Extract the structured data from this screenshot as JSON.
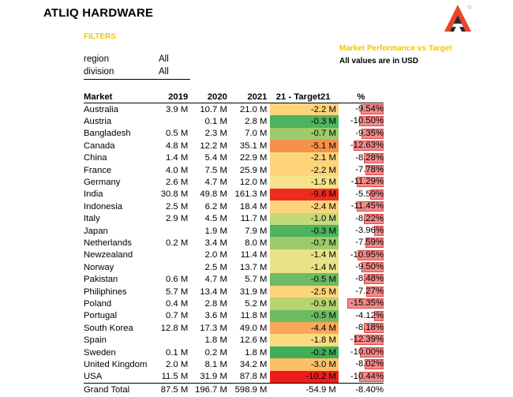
{
  "app_title": "ATLIQ HARDWARE",
  "filters": {
    "heading": "FILTERS",
    "items": [
      {
        "key": "region",
        "value": "All"
      },
      {
        "key": "division",
        "value": "All"
      }
    ]
  },
  "report": {
    "title": "Market Performance vs Target",
    "note": "All values are in USD"
  },
  "table": {
    "headers": [
      "Market",
      "2019",
      "2020",
      "2021",
      "21 - Target21",
      "%"
    ],
    "rows": [
      {
        "market": "Australia",
        "y2019": "3.9 M",
        "y2020": "10.7 M",
        "y2021": "21.0 M",
        "gap": "-2.2 M",
        "pct": "-9.54%",
        "gap_color": "#fdd47a",
        "pct_value": 9.54
      },
      {
        "market": "Austria",
        "y2019": "",
        "y2020": "0.1 M",
        "y2021": "2.8 M",
        "gap": "-0.3 M",
        "pct": "-10.50%",
        "gap_color": "#4db35c",
        "pct_value": 10.5
      },
      {
        "market": "Bangladesh",
        "y2019": "0.5 M",
        "y2020": "2.3 M",
        "y2021": "7.0 M",
        "gap": "-0.7 M",
        "pct": "-9.35%",
        "gap_color": "#9bcb6a",
        "pct_value": 9.35
      },
      {
        "market": "Canada",
        "y2019": "4.8 M",
        "y2020": "12.2 M",
        "y2021": "35.1 M",
        "gap": "-5.1 M",
        "pct": "-12.63%",
        "gap_color": "#f5914a",
        "pct_value": 12.63
      },
      {
        "market": "China",
        "y2019": "1.4 M",
        "y2020": "5.4 M",
        "y2021": "22.9 M",
        "gap": "-2.1 M",
        "pct": "-8.28%",
        "gap_color": "#fdd47a",
        "pct_value": 8.28
      },
      {
        "market": "France",
        "y2019": "4.0 M",
        "y2020": "7.5 M",
        "y2021": "25.9 M",
        "gap": "-2.2 M",
        "pct": "-7.78%",
        "gap_color": "#fdd47a",
        "pct_value": 7.78
      },
      {
        "market": "Germany",
        "y2019": "2.6 M",
        "y2020": "4.7 M",
        "y2021": "12.0 M",
        "gap": "-1.5 M",
        "pct": "-11.29%",
        "gap_color": "#f4e38a",
        "pct_value": 11.29
      },
      {
        "market": "India",
        "y2019": "30.8 M",
        "y2020": "49.8 M",
        "y2021": "161.3 M",
        "gap": "-9.6 M",
        "pct": "-5.59%",
        "gap_color": "#f02a1f",
        "pct_value": 5.59
      },
      {
        "market": "Indonesia",
        "y2019": "2.5 M",
        "y2020": "6.2 M",
        "y2021": "18.4 M",
        "gap": "-2.4 M",
        "pct": "-11.45%",
        "gap_color": "#fdd47a",
        "pct_value": 11.45
      },
      {
        "market": "Italy",
        "y2019": "2.9 M",
        "y2020": "4.5 M",
        "y2021": "11.7 M",
        "gap": "-1.0 M",
        "pct": "-8.22%",
        "gap_color": "#c3d97a",
        "pct_value": 8.22
      },
      {
        "market": "Japan",
        "y2019": "",
        "y2020": "1.9 M",
        "y2021": "7.9 M",
        "gap": "-0.3 M",
        "pct": "-3.96%",
        "gap_color": "#4db35c",
        "pct_value": 3.96
      },
      {
        "market": "Netherlands",
        "y2019": "0.2 M",
        "y2020": "3.4 M",
        "y2021": "8.0 M",
        "gap": "-0.7 M",
        "pct": "-7.59%",
        "gap_color": "#9bcb6a",
        "pct_value": 7.59
      },
      {
        "market": "Newzealand",
        "y2019": "",
        "y2020": "2.0 M",
        "y2021": "11.4 M",
        "gap": "-1.4 M",
        "pct": "-10.95%",
        "gap_color": "#e8e288",
        "pct_value": 10.95
      },
      {
        "market": "Norway",
        "y2019": "",
        "y2020": "2.5 M",
        "y2021": "13.7 M",
        "gap": "-1.4 M",
        "pct": "-9.50%",
        "gap_color": "#e8e288",
        "pct_value": 9.5
      },
      {
        "market": "Pakistan",
        "y2019": "0.6 M",
        "y2020": "4.7 M",
        "y2021": "5.7 M",
        "gap": "-0.5 M",
        "pct": "-8.48%",
        "gap_color": "#6dbb63",
        "pct_value": 8.48
      },
      {
        "market": "Philiphines",
        "y2019": "5.7 M",
        "y2020": "13.4 M",
        "y2021": "31.9 M",
        "gap": "-2.5 M",
        "pct": "-7.27%",
        "gap_color": "#fdd47a",
        "pct_value": 7.27
      },
      {
        "market": "Poland",
        "y2019": "0.4 M",
        "y2020": "2.8 M",
        "y2021": "5.2 M",
        "gap": "-0.9 M",
        "pct": "-15.35%",
        "gap_color": "#b6d46f",
        "pct_value": 15.35
      },
      {
        "market": "Portugal",
        "y2019": "0.7 M",
        "y2020": "3.6 M",
        "y2021": "11.8 M",
        "gap": "-0.5 M",
        "pct": "-4.12%",
        "gap_color": "#6dbb63",
        "pct_value": 4.12
      },
      {
        "market": "South Korea",
        "y2019": "12.8 M",
        "y2020": "17.3 M",
        "y2021": "49.0 M",
        "gap": "-4.4 M",
        "pct": "-8.18%",
        "gap_color": "#f8a95a",
        "pct_value": 8.18
      },
      {
        "market": "Spain",
        "y2019": "",
        "y2020": "1.8 M",
        "y2021": "12.6 M",
        "gap": "-1.8 M",
        "pct": "-12.39%",
        "gap_color": "#fbdb80",
        "pct_value": 12.39
      },
      {
        "market": "Sweden",
        "y2019": "0.1 M",
        "y2020": "0.2 M",
        "y2021": "1.8 M",
        "gap": "-0.2 M",
        "pct": "-10.00%",
        "gap_color": "#3fae58",
        "pct_value": 10.0
      },
      {
        "market": "United Kingdom",
        "y2019": "2.0 M",
        "y2020": "8.1 M",
        "y2021": "34.2 M",
        "gap": "-3.0 M",
        "pct": "-8.02%",
        "gap_color": "#fcc06a",
        "pct_value": 8.02
      },
      {
        "market": "USA",
        "y2019": "11.5 M",
        "y2020": "31.9 M",
        "y2021": "87.8 M",
        "gap": "-10.2 M",
        "pct": "-10.44%",
        "gap_color": "#ee1c1c",
        "pct_value": 10.44
      }
    ],
    "total": {
      "market": "Grand Total",
      "y2019": "87.5 M",
      "y2020": "196.7 M",
      "y2021": "598.9 M",
      "gap": "-54.9 M",
      "pct": "-8.40%"
    }
  },
  "colors": {
    "accent": "#f5c400",
    "logo_red": "#e8452a",
    "logo_dark": "#2b2b2b",
    "bar_fill": "#f28b8b",
    "bar_border": "#d84a4a"
  }
}
